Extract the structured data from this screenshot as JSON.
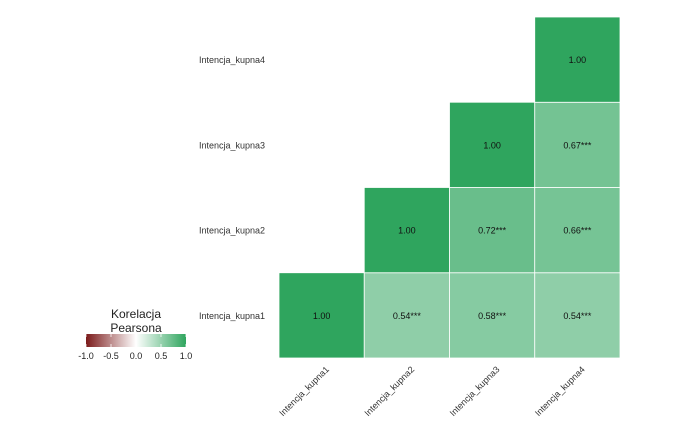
{
  "chart_data": {
    "type": "heatmap",
    "x_categories": [
      "Intencja_kupna1",
      "Intencja_kupna2",
      "Intencja_kupna3",
      "Intencja_kupna4"
    ],
    "y_categories": [
      "Intencja_kupna1",
      "Intencja_kupna2",
      "Intencja_kupna3",
      "Intencja_kupna4"
    ],
    "cells": [
      {
        "x": "Intencja_kupna1",
        "y": "Intencja_kupna1",
        "value": 1.0,
        "label": "1.00"
      },
      {
        "x": "Intencja_kupna2",
        "y": "Intencja_kupna1",
        "value": 0.54,
        "label": "0.54***"
      },
      {
        "x": "Intencja_kupna3",
        "y": "Intencja_kupna1",
        "value": 0.58,
        "label": "0.58***"
      },
      {
        "x": "Intencja_kupna4",
        "y": "Intencja_kupna1",
        "value": 0.54,
        "label": "0.54***"
      },
      {
        "x": "Intencja_kupna2",
        "y": "Intencja_kupna2",
        "value": 1.0,
        "label": "1.00"
      },
      {
        "x": "Intencja_kupna3",
        "y": "Intencja_kupna2",
        "value": 0.72,
        "label": "0.72***"
      },
      {
        "x": "Intencja_kupna4",
        "y": "Intencja_kupna2",
        "value": 0.66,
        "label": "0.66***"
      },
      {
        "x": "Intencja_kupna3",
        "y": "Intencja_kupna3",
        "value": 1.0,
        "label": "1.00"
      },
      {
        "x": "Intencja_kupna4",
        "y": "Intencja_kupna3",
        "value": 0.67,
        "label": "0.67***"
      },
      {
        "x": "Intencja_kupna4",
        "y": "Intencja_kupna4",
        "value": 1.0,
        "label": "1.00"
      }
    ],
    "legend": {
      "title_lines": [
        "Korelacja",
        "Pearsona"
      ],
      "ticks": [
        -1.0,
        -0.5,
        0.0,
        0.5,
        1.0
      ],
      "tick_labels": [
        "-1.0",
        "-0.5",
        "0.0",
        "0.5",
        "1.0"
      ],
      "range": [
        -1,
        1
      ],
      "colors": {
        "low": "#7b1a1a",
        "mid": "#ffffff",
        "high": "#2fa55e"
      },
      "placement": "left"
    },
    "grid": false
  }
}
